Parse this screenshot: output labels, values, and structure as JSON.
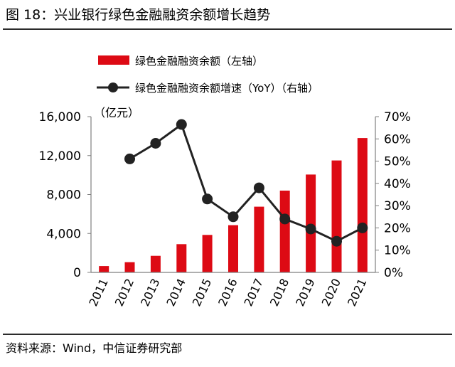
{
  "figure": {
    "title": "图 18：兴业银行绿色金融融资余额增长趋势",
    "source": "资料来源：Wind，中信证券研究部"
  },
  "colors": {
    "bar": "#dd0a14",
    "line": "#222222",
    "axis": "#7f7f7f",
    "text": "#000000"
  },
  "chart_data": {
    "type": "bar",
    "title": "",
    "categories": [
      "2011",
      "2012",
      "2013",
      "2014",
      "2015",
      "2016",
      "2017",
      "2018",
      "2019",
      "2020",
      "2021"
    ],
    "y_unit_label": "（亿元）",
    "series": [
      {
        "name": "绿色金融融资余额（左轴）",
        "type": "bar",
        "axis": "left",
        "values": [
          650,
          1050,
          1700,
          2900,
          3850,
          4850,
          6750,
          8400,
          10050,
          11500,
          13800
        ]
      },
      {
        "name": "绿色金融融资余额增速（YoY）（右轴）",
        "type": "line",
        "axis": "right",
        "values": [
          null,
          51,
          58,
          66.5,
          33,
          25,
          38,
          24,
          19.5,
          14,
          20
        ]
      }
    ],
    "y_left": {
      "range": [
        0,
        16000
      ],
      "ticks": [
        "0",
        "4,000",
        "8,000",
        "12,000",
        "16,000"
      ],
      "tick_values": [
        0,
        4000,
        8000,
        12000,
        16000
      ]
    },
    "y_right": {
      "range": [
        0,
        70
      ],
      "ticks": [
        "0%",
        "10%",
        "20%",
        "30%",
        "40%",
        "50%",
        "60%",
        "70%"
      ],
      "tick_values": [
        0,
        10,
        20,
        30,
        40,
        50,
        60,
        70
      ]
    },
    "grid": false,
    "legend_position": "top-center"
  }
}
